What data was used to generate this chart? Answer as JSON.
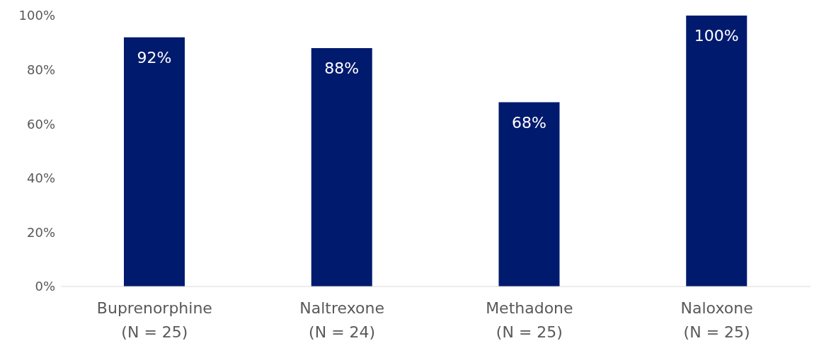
{
  "chart_data": {
    "type": "bar",
    "categories": [
      "Buprenorphine\n(N = 25)",
      "Naltrexone\n(N = 24)",
      "Methadone\n(N = 25)",
      "Naloxone\n(N = 25)"
    ],
    "values": [
      92,
      88,
      68,
      100
    ],
    "value_labels": [
      "92%",
      "88%",
      "68%",
      "100%"
    ],
    "color": "#001a6e",
    "ylim": [
      0,
      100
    ],
    "yticks": [
      {
        "value": 0,
        "label": "0%"
      },
      {
        "value": 20,
        "label": "20%"
      },
      {
        "value": 40,
        "label": "40%"
      },
      {
        "value": 60,
        "label": "60%"
      },
      {
        "value": 80,
        "label": "80%"
      },
      {
        "value": 100,
        "label": "100%"
      }
    ],
    "grid": false,
    "legend": false
  }
}
